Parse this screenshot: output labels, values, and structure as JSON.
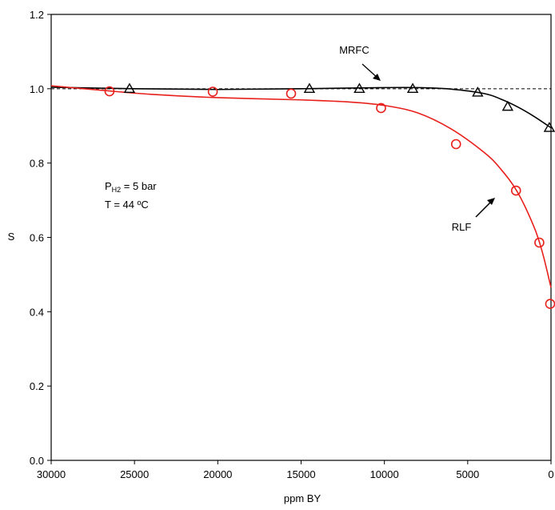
{
  "chart_data": {
    "type": "scatter",
    "xlabel": "ppm BY",
    "ylabel": "S",
    "xlim": [
      30000,
      0
    ],
    "ylim": [
      0,
      1.2
    ],
    "x_reversed": true,
    "xticks": [
      30000,
      25000,
      20000,
      15000,
      10000,
      5000,
      0
    ],
    "xtick_labels": [
      "30000",
      "25000",
      "20000",
      "15000",
      "10000",
      "5000",
      "0"
    ],
    "yticks": [
      0,
      0.2,
      0.4,
      0.6,
      0.8,
      1.0,
      1.2
    ],
    "ytick_labels": [
      "0.0",
      "0.2",
      "0.4",
      "0.6",
      "0.8",
      "1.0",
      "1.2"
    ],
    "grid": false,
    "reference_line": {
      "y": 1.0,
      "style": "dashed",
      "color": "#000000"
    },
    "series": [
      {
        "name": "MRFC",
        "marker": "triangle",
        "color": "#000000",
        "points": [
          {
            "x": 25300,
            "y": 1.0
          },
          {
            "x": 14500,
            "y": 1.0
          },
          {
            "x": 11500,
            "y": 1.0
          },
          {
            "x": 8300,
            "y": 1.0
          },
          {
            "x": 4400,
            "y": 0.99
          },
          {
            "x": 2600,
            "y": 0.952
          },
          {
            "x": 100,
            "y": 0.895
          }
        ],
        "fit_curve": [
          {
            "x": 30000,
            "y": 1.004
          },
          {
            "x": 25000,
            "y": 1.0
          },
          {
            "x": 20000,
            "y": 0.998
          },
          {
            "x": 15000,
            "y": 1.0
          },
          {
            "x": 10000,
            "y": 1.003
          },
          {
            "x": 8000,
            "y": 1.003
          },
          {
            "x": 6000,
            "y": 0.999
          },
          {
            "x": 4000,
            "y": 0.987
          },
          {
            "x": 3000,
            "y": 0.972
          },
          {
            "x": 2000,
            "y": 0.951
          },
          {
            "x": 1000,
            "y": 0.925
          },
          {
            "x": 0,
            "y": 0.895
          }
        ]
      },
      {
        "name": "RLF",
        "marker": "circle",
        "color": "#e8201c",
        "points": [
          {
            "x": 26500,
            "y": 0.993
          },
          {
            "x": 20300,
            "y": 0.992
          },
          {
            "x": 15600,
            "y": 0.987
          },
          {
            "x": 10200,
            "y": 0.948
          },
          {
            "x": 5700,
            "y": 0.851
          },
          {
            "x": 2100,
            "y": 0.726
          },
          {
            "x": 700,
            "y": 0.586
          },
          {
            "x": 50,
            "y": 0.421
          }
        ],
        "fit_curve": [
          {
            "x": 30000,
            "y": 1.008
          },
          {
            "x": 27000,
            "y": 0.996
          },
          {
            "x": 24000,
            "y": 0.985
          },
          {
            "x": 20000,
            "y": 0.976
          },
          {
            "x": 15000,
            "y": 0.97
          },
          {
            "x": 12000,
            "y": 0.964
          },
          {
            "x": 10000,
            "y": 0.955
          },
          {
            "x": 8000,
            "y": 0.935
          },
          {
            "x": 6000,
            "y": 0.892
          },
          {
            "x": 4000,
            "y": 0.828
          },
          {
            "x": 3000,
            "y": 0.783
          },
          {
            "x": 2000,
            "y": 0.721
          },
          {
            "x": 1000,
            "y": 0.626
          },
          {
            "x": 500,
            "y": 0.557
          },
          {
            "x": 0,
            "y": 0.465
          }
        ]
      }
    ],
    "annotations": {
      "mrfc_label": "MRFC",
      "rlf_label": "RLF",
      "pressure_prefix": "P",
      "pressure_subscript": "H2",
      "pressure_suffix": " = 5 bar",
      "temperature": "T = 44 ºC"
    }
  }
}
